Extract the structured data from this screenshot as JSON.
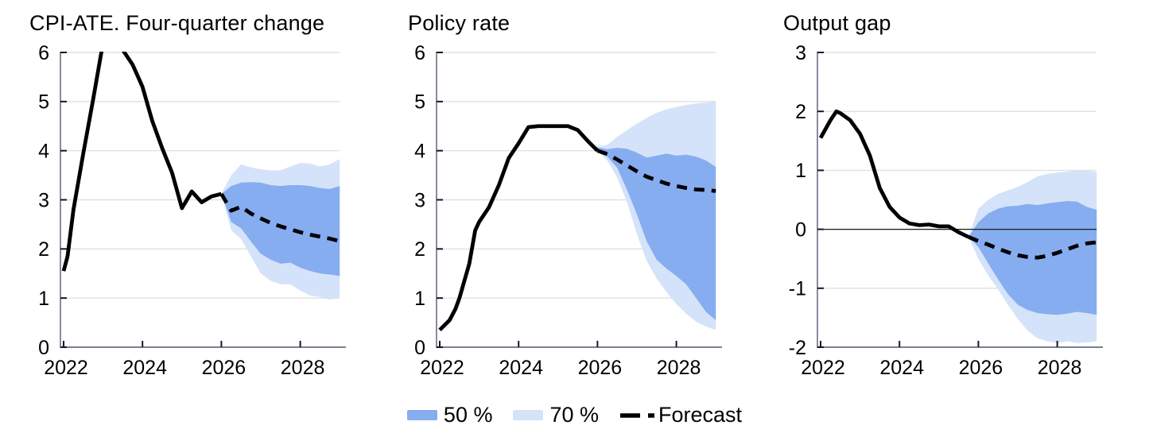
{
  "page": {
    "background": "#FFFFFF"
  },
  "colors": {
    "band50": "#86ADEF",
    "band70": "#D4E3F9",
    "line": "#000000",
    "grid": "#E1E1E1",
    "axis": "#7A8090",
    "tick": "#14181F",
    "zero_line": "#1A1A1A",
    "label": "#000000"
  },
  "legend": {
    "items": [
      {
        "label": "50 %",
        "swatch": "band50"
      },
      {
        "label": "70 %",
        "swatch": "band70"
      },
      {
        "label": "Forecast",
        "swatch": "dashed-line"
      }
    ]
  },
  "chart_data": [
    {
      "type": "area",
      "title": "CPI-ATE. Four-quarter change",
      "xlabel": "",
      "ylabel": "",
      "ylim": [
        0,
        6
      ],
      "yticks": [
        0,
        1,
        2,
        3,
        4,
        5,
        6
      ],
      "xticks": [
        2022,
        2024,
        2026,
        2028
      ],
      "xlim": [
        2021.92,
        2029
      ],
      "grid": true,
      "zero_line": false,
      "history": [
        [
          2022,
          1.55
        ],
        [
          2022.1,
          1.85
        ],
        [
          2022.25,
          2.8
        ],
        [
          2022.5,
          3.95
        ],
        [
          2022.75,
          5.05
        ],
        [
          2023,
          6.2
        ],
        [
          2023.25,
          6.45
        ],
        [
          2023.5,
          6.05
        ],
        [
          2023.75,
          5.75
        ],
        [
          2024,
          5.3
        ],
        [
          2024.25,
          4.6
        ],
        [
          2024.5,
          4.05
        ],
        [
          2024.75,
          3.55
        ],
        [
          2025,
          2.83
        ],
        [
          2025.25,
          3.17
        ],
        [
          2025.5,
          2.95
        ],
        [
          2025.75,
          3.07
        ],
        [
          2026,
          3.12
        ]
      ],
      "forecast": [
        [
          2026,
          3.12
        ],
        [
          2026.25,
          2.78
        ],
        [
          2026.5,
          2.86
        ],
        [
          2026.75,
          2.72
        ],
        [
          2027,
          2.62
        ],
        [
          2027.25,
          2.53
        ],
        [
          2027.5,
          2.46
        ],
        [
          2027.75,
          2.4
        ],
        [
          2028,
          2.34
        ],
        [
          2028.25,
          2.29
        ],
        [
          2028.5,
          2.25
        ],
        [
          2028.75,
          2.21
        ],
        [
          2029,
          2.16
        ]
      ],
      "band50": [
        [
          2026,
          3.12,
          3.12
        ],
        [
          2026.25,
          2.55,
          3.28
        ],
        [
          2026.5,
          2.42,
          3.35
        ],
        [
          2026.75,
          2.15,
          3.36
        ],
        [
          2027,
          1.9,
          3.35
        ],
        [
          2027.25,
          1.78,
          3.3
        ],
        [
          2027.5,
          1.7,
          3.28
        ],
        [
          2027.75,
          1.72,
          3.3
        ],
        [
          2028,
          1.62,
          3.3
        ],
        [
          2028.25,
          1.55,
          3.28
        ],
        [
          2028.5,
          1.5,
          3.24
        ],
        [
          2028.75,
          1.48,
          3.22
        ],
        [
          2029,
          1.45,
          3.28
        ]
      ],
      "band70": [
        [
          2026,
          3.12,
          3.12
        ],
        [
          2026.25,
          2.38,
          3.5
        ],
        [
          2026.5,
          2.2,
          3.72
        ],
        [
          2026.75,
          1.85,
          3.66
        ],
        [
          2027,
          1.5,
          3.62
        ],
        [
          2027.25,
          1.35,
          3.6
        ],
        [
          2027.5,
          1.28,
          3.6
        ],
        [
          2027.75,
          1.28,
          3.68
        ],
        [
          2028,
          1.15,
          3.75
        ],
        [
          2028.25,
          1.05,
          3.74
        ],
        [
          2028.5,
          1.02,
          3.68
        ],
        [
          2028.75,
          0.97,
          3.72
        ],
        [
          2029,
          1.0,
          3.83
        ]
      ]
    },
    {
      "type": "area",
      "title": "Policy rate",
      "xlabel": "",
      "ylabel": "",
      "ylim": [
        0,
        6
      ],
      "yticks": [
        0,
        1,
        2,
        3,
        4,
        5,
        6
      ],
      "xticks": [
        2022,
        2024,
        2026,
        2028
      ],
      "xlim": [
        2021.92,
        2029
      ],
      "grid": true,
      "zero_line": false,
      "history": [
        [
          2022,
          0.35
        ],
        [
          2022.25,
          0.55
        ],
        [
          2022.4,
          0.78
        ],
        [
          2022.5,
          1.0
        ],
        [
          2022.75,
          1.7
        ],
        [
          2022.9,
          2.38
        ],
        [
          2023,
          2.55
        ],
        [
          2023.25,
          2.85
        ],
        [
          2023.5,
          3.3
        ],
        [
          2023.75,
          3.85
        ],
        [
          2024,
          4.15
        ],
        [
          2024.25,
          4.48
        ],
        [
          2024.5,
          4.5
        ],
        [
          2024.75,
          4.5
        ],
        [
          2025,
          4.5
        ],
        [
          2025.25,
          4.5
        ],
        [
          2025.5,
          4.42
        ],
        [
          2025.75,
          4.2
        ],
        [
          2026,
          4.0
        ]
      ],
      "forecast": [
        [
          2026,
          4.0
        ],
        [
          2026.25,
          3.93
        ],
        [
          2026.5,
          3.82
        ],
        [
          2026.75,
          3.7
        ],
        [
          2027,
          3.58
        ],
        [
          2027.25,
          3.47
        ],
        [
          2027.5,
          3.4
        ],
        [
          2027.75,
          3.33
        ],
        [
          2028,
          3.28
        ],
        [
          2028.25,
          3.24
        ],
        [
          2028.5,
          3.21
        ],
        [
          2028.75,
          3.2
        ],
        [
          2029,
          3.18
        ]
      ],
      "band50": [
        [
          2025.9,
          4.08,
          4.08
        ],
        [
          2026.25,
          3.88,
          4.03
        ],
        [
          2026.5,
          3.65,
          4.06
        ],
        [
          2026.75,
          3.2,
          4.04
        ],
        [
          2027,
          2.7,
          3.96
        ],
        [
          2027.25,
          2.15,
          3.86
        ],
        [
          2027.5,
          1.78,
          3.9
        ],
        [
          2027.75,
          1.6,
          3.94
        ],
        [
          2028,
          1.45,
          3.9
        ],
        [
          2028.25,
          1.28,
          3.92
        ],
        [
          2028.5,
          1.0,
          3.88
        ],
        [
          2028.75,
          0.72,
          3.8
        ],
        [
          2029,
          0.55,
          3.67
        ]
      ],
      "band70": [
        [
          2025.9,
          4.08,
          4.08
        ],
        [
          2026.25,
          3.8,
          4.12
        ],
        [
          2026.5,
          3.45,
          4.28
        ],
        [
          2026.75,
          2.95,
          4.42
        ],
        [
          2027,
          2.3,
          4.55
        ],
        [
          2027.25,
          1.75,
          4.67
        ],
        [
          2027.5,
          1.4,
          4.77
        ],
        [
          2027.75,
          1.12,
          4.84
        ],
        [
          2028,
          0.88,
          4.89
        ],
        [
          2028.25,
          0.68,
          4.93
        ],
        [
          2028.5,
          0.52,
          4.96
        ],
        [
          2028.75,
          0.42,
          4.98
        ],
        [
          2029,
          0.35,
          5.0
        ]
      ]
    },
    {
      "type": "area",
      "title": "Output gap",
      "xlabel": "",
      "ylabel": "",
      "ylim": [
        -2,
        3
      ],
      "yticks": [
        -2,
        -1,
        0,
        1,
        2,
        3
      ],
      "xticks": [
        2022,
        2024,
        2026,
        2028
      ],
      "xlim": [
        2021.92,
        2029
      ],
      "grid": true,
      "zero_line": true,
      "history": [
        [
          2022,
          1.55
        ],
        [
          2022.25,
          1.85
        ],
        [
          2022.4,
          2.0
        ],
        [
          2022.5,
          1.97
        ],
        [
          2022.75,
          1.85
        ],
        [
          2023,
          1.62
        ],
        [
          2023.25,
          1.25
        ],
        [
          2023.5,
          0.7
        ],
        [
          2023.75,
          0.38
        ],
        [
          2024,
          0.2
        ],
        [
          2024.25,
          0.1
        ],
        [
          2024.5,
          0.07
        ],
        [
          2024.75,
          0.08
        ],
        [
          2025,
          0.05
        ],
        [
          2025.25,
          0.05
        ],
        [
          2025.5,
          -0.05
        ],
        [
          2025.75,
          -0.13
        ]
      ],
      "forecast": [
        [
          2025.75,
          -0.13
        ],
        [
          2026,
          -0.2
        ],
        [
          2026.25,
          -0.26
        ],
        [
          2026.5,
          -0.33
        ],
        [
          2026.75,
          -0.39
        ],
        [
          2027,
          -0.44
        ],
        [
          2027.25,
          -0.47
        ],
        [
          2027.5,
          -0.48
        ],
        [
          2027.75,
          -0.45
        ],
        [
          2028,
          -0.4
        ],
        [
          2028.25,
          -0.34
        ],
        [
          2028.5,
          -0.28
        ],
        [
          2028.75,
          -0.24
        ],
        [
          2029,
          -0.22
        ]
      ],
      "band50": [
        [
          2025.75,
          -0.13,
          -0.13
        ],
        [
          2026,
          -0.3,
          0.12
        ],
        [
          2026.25,
          -0.58,
          0.27
        ],
        [
          2026.5,
          -0.85,
          0.35
        ],
        [
          2026.75,
          -1.1,
          0.39
        ],
        [
          2027,
          -1.28,
          0.4
        ],
        [
          2027.25,
          -1.37,
          0.43
        ],
        [
          2027.5,
          -1.42,
          0.41
        ],
        [
          2027.75,
          -1.44,
          0.44
        ],
        [
          2028,
          -1.45,
          0.46
        ],
        [
          2028.25,
          -1.43,
          0.48
        ],
        [
          2028.5,
          -1.4,
          0.47
        ],
        [
          2028.75,
          -1.42,
          0.38
        ],
        [
          2029,
          -1.45,
          0.33
        ]
      ],
      "band70": [
        [
          2025.75,
          -0.13,
          -0.13
        ],
        [
          2026,
          -0.5,
          0.35
        ],
        [
          2026.25,
          -0.78,
          0.5
        ],
        [
          2026.5,
          -1.02,
          0.6
        ],
        [
          2026.75,
          -1.28,
          0.66
        ],
        [
          2027,
          -1.52,
          0.72
        ],
        [
          2027.25,
          -1.72,
          0.8
        ],
        [
          2027.5,
          -1.85,
          0.9
        ],
        [
          2027.75,
          -1.9,
          0.94
        ],
        [
          2028,
          -1.93,
          0.96
        ],
        [
          2028.25,
          -1.9,
          0.98
        ],
        [
          2028.5,
          -1.93,
          1.0
        ],
        [
          2028.75,
          -1.92,
          1.0
        ],
        [
          2029,
          -1.9,
          0.97
        ]
      ]
    }
  ]
}
